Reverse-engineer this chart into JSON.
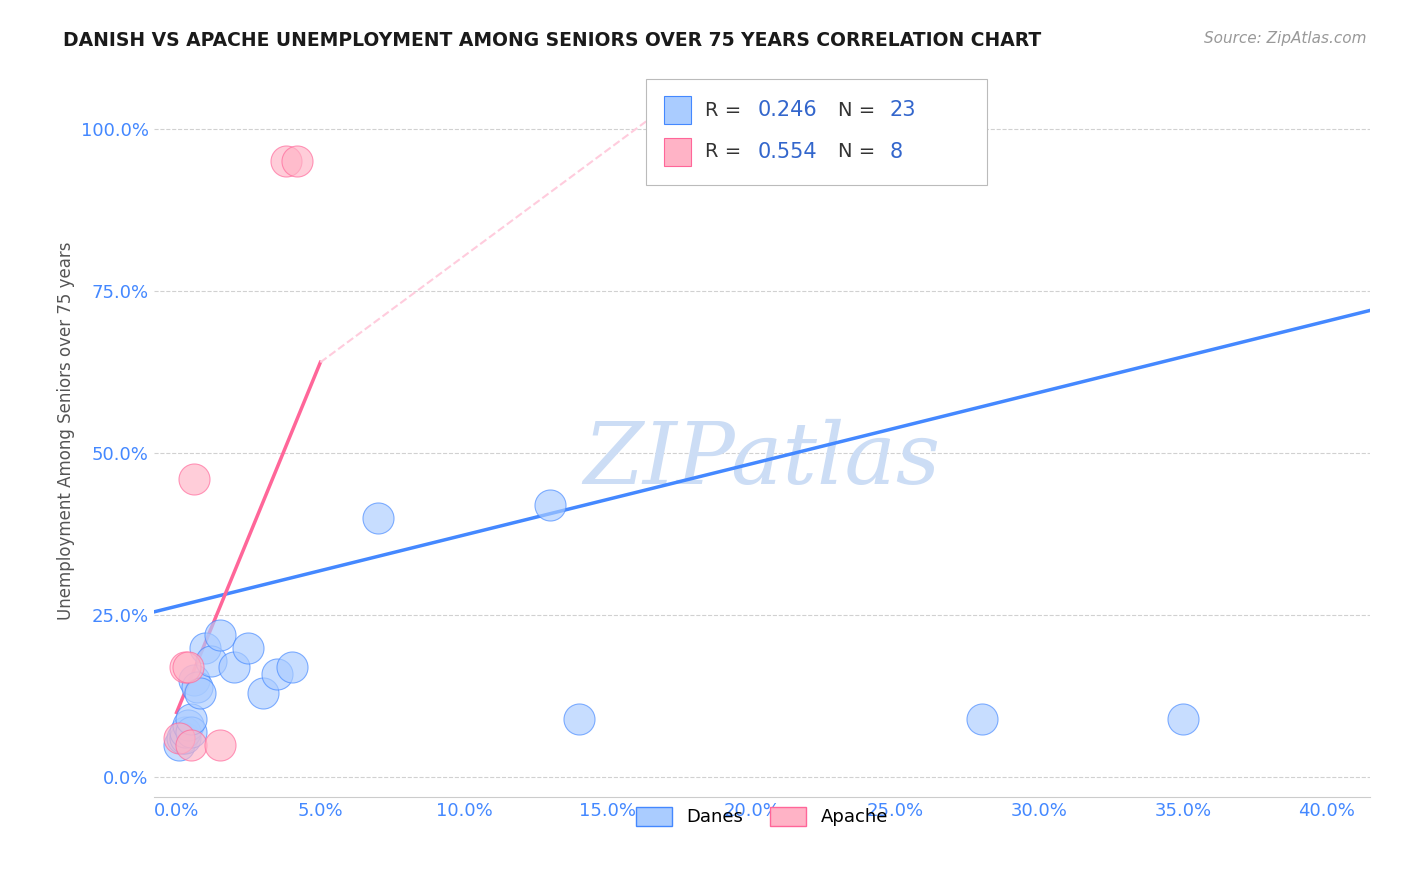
{
  "title": "DANISH VS APACHE UNEMPLOYMENT AMONG SENIORS OVER 75 YEARS CORRELATION CHART",
  "source": "Source: ZipAtlas.com",
  "ylabel": "Unemployment Among Seniors over 75 years",
  "xlabel_vals": [
    0.0,
    0.05,
    0.1,
    0.15,
    0.2,
    0.25,
    0.3,
    0.35,
    0.4
  ],
  "ylabel_vals": [
    0.0,
    0.25,
    0.5,
    0.75,
    1.0
  ],
  "xlim": [
    -0.008,
    0.415
  ],
  "ylim": [
    -0.03,
    1.1
  ],
  "danes_x": [
    0.001,
    0.002,
    0.003,
    0.003,
    0.004,
    0.005,
    0.005,
    0.006,
    0.007,
    0.008,
    0.01,
    0.012,
    0.015,
    0.02,
    0.025,
    0.03,
    0.035,
    0.04,
    0.07,
    0.13,
    0.14,
    0.28,
    0.35
  ],
  "danes_y": [
    0.05,
    0.06,
    0.06,
    0.07,
    0.08,
    0.07,
    0.09,
    0.15,
    0.14,
    0.13,
    0.2,
    0.18,
    0.22,
    0.17,
    0.2,
    0.13,
    0.16,
    0.17,
    0.4,
    0.42,
    0.09,
    0.09,
    0.09
  ],
  "apache_x": [
    0.001,
    0.003,
    0.004,
    0.005,
    0.006,
    0.015,
    0.038,
    0.042
  ],
  "apache_y": [
    0.06,
    0.17,
    0.17,
    0.05,
    0.46,
    0.05,
    0.95,
    0.95
  ],
  "danes_color": "#aaccff",
  "apache_color": "#ffb3c6",
  "danes_line_color": "#4488ff",
  "apache_line_color": "#ff6699",
  "apache_line_dashed_color": "#ffccdd",
  "danes_r": 0.246,
  "danes_n": 23,
  "apache_r": 0.554,
  "apache_n": 8,
  "watermark_text": "ZIPatlas",
  "watermark_color": "#ccddf5",
  "legend_r_color": "#3366cc",
  "background_color": "#ffffff",
  "grid_color": "#cccccc",
  "danes_line_y0": 0.255,
  "danes_line_y1": 0.72,
  "apache_line_solid_x0": 0.0,
  "apache_line_solid_x1": 0.05,
  "apache_line_solid_y0": 0.1,
  "apache_line_solid_y1": 0.64,
  "apache_line_dashed_x0": 0.05,
  "apache_line_dashed_x1": 0.175,
  "apache_line_dashed_y0": 0.64,
  "apache_line_dashed_y1": 1.05
}
